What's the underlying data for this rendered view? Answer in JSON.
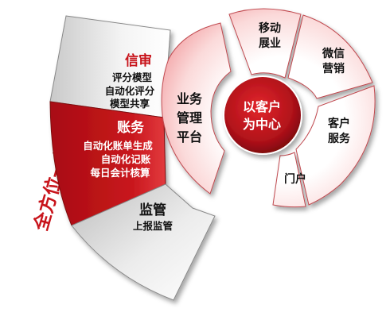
{
  "vertical_title": "全方位一体解决方案",
  "fan": {
    "credit": {
      "title": "信审",
      "lines": [
        "评分模型",
        "自动化评分",
        "模型共享"
      ]
    },
    "accounting": {
      "title": "账务",
      "lines": [
        "自动化账单生成",
        "自动化记账",
        "每日会计核算"
      ]
    },
    "supervision": {
      "title": "监管",
      "lines": [
        "上报监管"
      ]
    }
  },
  "ring": {
    "platform": {
      "lines": [
        "业务",
        "管理",
        "平台"
      ]
    },
    "mobile": {
      "lines": [
        "移动",
        "展业"
      ]
    },
    "wechat": {
      "lines": [
        "微信",
        "营销"
      ]
    },
    "service": {
      "lines": [
        "客户",
        "服务"
      ]
    },
    "portal": {
      "lines": [
        "门户"
      ]
    }
  },
  "center": {
    "lines": [
      "以客户",
      "为中心"
    ]
  },
  "colors": {
    "brand_red": "#c0151a",
    "dark_red": "#8e0b10",
    "pink": "#f6b9bb",
    "gray": "#d6d6d6",
    "title_red": "#c8141b"
  }
}
